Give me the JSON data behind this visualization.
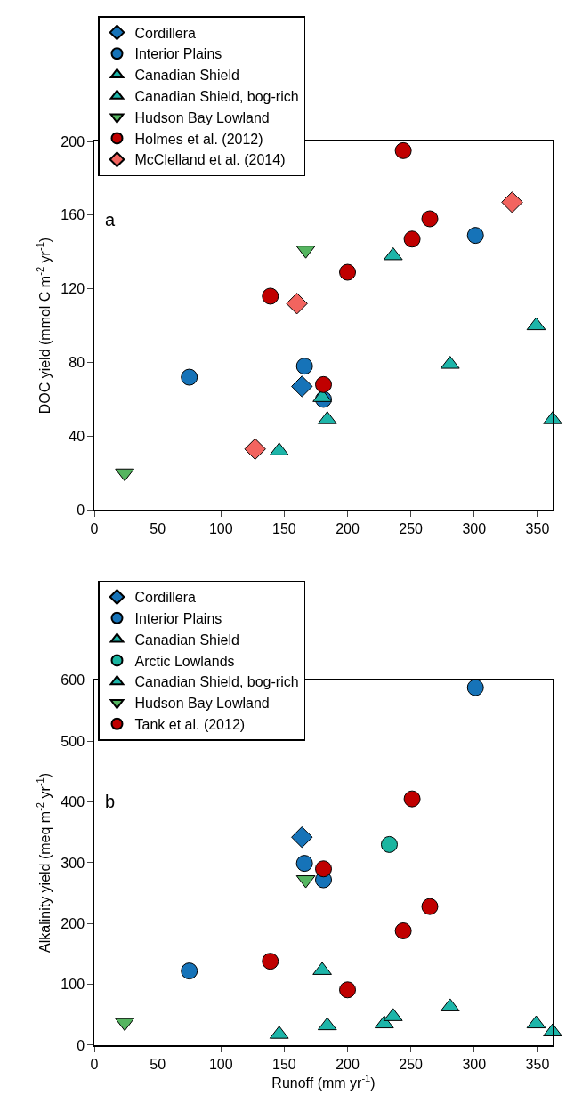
{
  "chart_data": [
    {
      "type": "scatter",
      "ylabel": "DOC yield (mmol C m$^{-2}$ yr$^{-1}$)",
      "xlim": [
        0,
        362
      ],
      "xticks": [
        0,
        50,
        100,
        150,
        200,
        250,
        300,
        350
      ],
      "ylim": [
        0,
        200
      ],
      "yticks": [
        0,
        40,
        80,
        120,
        160,
        200
      ],
      "legend": "top left",
      "annotations": [
        "a"
      ],
      "series": [
        {
          "name": "Cordillera",
          "color": "#1673b8",
          "marker": "diamond",
          "x": [
            164
          ],
          "values": [
            67
          ]
        },
        {
          "name": "Interior Plains",
          "color": "#1673b8",
          "marker": "circle",
          "x": [
            75,
            166,
            181,
            301
          ],
          "values": [
            72,
            78,
            60,
            149
          ]
        },
        {
          "name": "Canadian Shield",
          "color": "#1db5a9",
          "marker": "triangle",
          "x": [
            146,
            180,
            184,
            281,
            349,
            362
          ],
          "values": [
            32,
            61,
            49,
            79,
            100,
            49
          ]
        },
        {
          "name": "Canadian Shield, bog-rich",
          "color": "#1db5a9",
          "marker": "triangle",
          "x": [
            236
          ],
          "values": [
            138
          ]
        },
        {
          "name": "Hudson Bay Lowland",
          "color": "#55b560",
          "marker": "triangle-down",
          "x": [
            24,
            167
          ],
          "values": [
            20,
            141
          ]
        },
        {
          "name": "Holmes et al. (2012)",
          "color": "#c00000",
          "marker": "circle",
          "x": [
            139,
            181,
            200,
            244,
            251,
            265
          ],
          "values": [
            116,
            68,
            129,
            195,
            147,
            158
          ]
        },
        {
          "name": "McClelland et al. (2014)",
          "color": "#f2645f",
          "marker": "diamond",
          "x": [
            127,
            160,
            330
          ],
          "values": [
            33,
            112,
            167
          ]
        }
      ]
    },
    {
      "type": "scatter",
      "xlabel": "Runoff (mm yr$^{-1}$)",
      "ylabel": "Alkalinity yield (meq m$^{-2}$ yr$^{-1}$)",
      "xlim": [
        0,
        362
      ],
      "xticks": [
        0,
        50,
        100,
        150,
        200,
        250,
        300,
        350
      ],
      "ylim": [
        0,
        600
      ],
      "yticks": [
        0,
        100,
        200,
        300,
        400,
        500,
        600
      ],
      "legend": "top left",
      "annotations": [
        "b"
      ],
      "series": [
        {
          "name": "Cordillera",
          "color": "#1673b8",
          "marker": "diamond",
          "x": [
            164
          ],
          "values": [
            342
          ]
        },
        {
          "name": "Interior Plains",
          "color": "#1673b8",
          "marker": "circle",
          "x": [
            75,
            166,
            181,
            301
          ],
          "values": [
            122,
            299,
            272,
            588
          ]
        },
        {
          "name": "Canadian Shield",
          "color": "#1db5a9",
          "marker": "triangle",
          "x": [
            146,
            180,
            184,
            229,
            281,
            349,
            362
          ],
          "values": [
            18,
            123,
            32,
            35,
            63,
            35,
            22
          ]
        },
        {
          "name": "Arctic Lowlands",
          "color": "#1bb5a0",
          "marker": "circle",
          "x": [
            233
          ],
          "values": [
            330
          ]
        },
        {
          "name": "Canadian Shield, bog-rich",
          "color": "#1db5a9",
          "marker": "triangle",
          "x": [
            236
          ],
          "values": [
            47
          ]
        },
        {
          "name": "Hudson Bay Lowland",
          "color": "#55b560",
          "marker": "triangle-down",
          "x": [
            24,
            167
          ],
          "values": [
            37,
            272
          ]
        },
        {
          "name": "Tank et al. (2012)",
          "color": "#c00000",
          "marker": "circle",
          "x": [
            139,
            181,
            200,
            244,
            251,
            265
          ],
          "values": [
            138,
            290,
            91,
            188,
            405,
            228
          ]
        }
      ]
    }
  ]
}
